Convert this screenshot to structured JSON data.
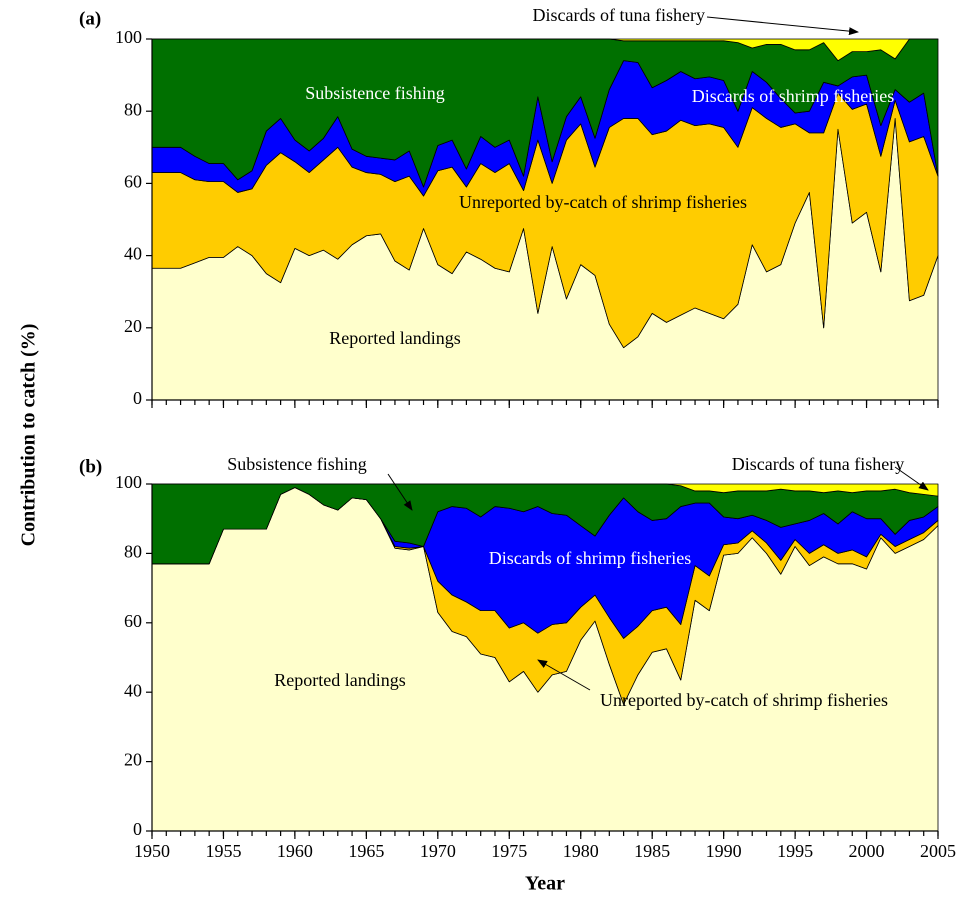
{
  "y_label": "Contribution to catch (%)",
  "chart_data": [
    {
      "type": "stacked_area",
      "panel": "(a)",
      "x": [
        1950,
        1951,
        1952,
        1953,
        1954,
        1955,
        1956,
        1957,
        1958,
        1959,
        1960,
        1961,
        1962,
        1963,
        1964,
        1965,
        1966,
        1967,
        1968,
        1969,
        1970,
        1971,
        1972,
        1973,
        1974,
        1975,
        1976,
        1977,
        1978,
        1979,
        1980,
        1981,
        1982,
        1983,
        1984,
        1985,
        1986,
        1987,
        1988,
        1989,
        1990,
        1991,
        1992,
        1993,
        1994,
        1995,
        1996,
        1997,
        1998,
        1999,
        2000,
        2001,
        2002,
        2003,
        2004,
        2005
      ],
      "xlim": [
        1950,
        2005
      ],
      "xticks": [
        1950,
        1955,
        1960,
        1965,
        1970,
        1975,
        1980,
        1985,
        1990,
        1995,
        2000,
        2005
      ],
      "ylim": [
        0,
        100
      ],
      "yticks": [
        0,
        20,
        40,
        60,
        80,
        100
      ],
      "series": [
        {
          "name": "Reported landings",
          "color": "#ffffcc",
          "values": [
            36.5,
            36.5,
            36.5,
            38,
            39.5,
            39.5,
            42.5,
            40,
            35,
            32.5,
            42,
            40,
            41.5,
            39,
            43,
            45.5,
            46,
            38.5,
            36,
            47.5,
            37.5,
            35,
            41,
            39,
            36.5,
            35.5,
            47.5,
            24,
            42.5,
            28,
            37.5,
            34.5,
            21,
            14.5,
            17.5,
            24,
            21.5,
            23.5,
            25.5,
            24,
            22.5,
            26.5,
            43,
            35.5,
            37.5,
            49,
            57.5,
            20,
            75,
            49,
            52,
            35.5,
            78,
            27.5,
            29,
            40
          ]
        },
        {
          "name": "Unreported by-catch of shrimp fisheries",
          "color": "#ffcc00",
          "values": [
            26.5,
            26.5,
            26.5,
            23,
            21,
            21,
            15,
            18.5,
            30,
            36,
            24,
            23,
            25,
            31,
            21.5,
            17.5,
            16.5,
            22,
            26,
            9,
            26,
            29.5,
            18,
            26.5,
            26.5,
            30,
            10.5,
            48,
            17.5,
            44,
            39,
            30,
            54.5,
            63.5,
            60.5,
            49.5,
            53,
            54,
            50.5,
            52.5,
            53,
            43.5,
            38,
            42.5,
            38,
            27.5,
            16.5,
            54,
            10,
            31.5,
            30,
            32,
            5,
            44,
            44,
            22
          ]
        },
        {
          "name": "Discards of shrimp fisheries",
          "color": "#0000ff",
          "values": [
            7,
            7,
            7,
            6.5,
            5,
            5,
            3.5,
            5,
            9.5,
            9.5,
            6,
            6,
            6,
            8.5,
            5,
            4.5,
            4.5,
            6,
            7,
            2.5,
            7,
            7.5,
            5,
            7.5,
            7,
            6.5,
            4,
            12,
            6,
            6.5,
            7.5,
            8,
            10.5,
            16,
            15.5,
            13,
            14,
            13.5,
            13,
            13,
            13,
            10,
            10,
            10,
            8,
            3,
            6,
            14,
            2,
            9,
            8,
            8.5,
            3,
            11,
            12,
            0
          ]
        },
        {
          "name": "Subsistence fishing",
          "color": "#007000",
          "values": [
            30,
            30,
            30,
            32.5,
            34.5,
            34.5,
            39,
            36.5,
            25.5,
            22,
            28,
            31,
            27.5,
            21.5,
            30.5,
            32.5,
            33,
            33.5,
            31,
            41,
            29.5,
            28,
            36,
            27,
            30,
            28,
            38,
            16,
            34,
            21.5,
            16,
            27.5,
            14,
            5.5,
            6,
            13,
            11,
            8.5,
            10.5,
            10,
            11,
            19,
            6.5,
            10.5,
            15,
            17.5,
            17,
            11,
            7,
            7,
            6.5,
            21,
            8.5,
            17.5,
            15,
            38
          ]
        },
        {
          "name": "Discards of tuna fishery",
          "color": "#ffff00",
          "values": [
            0,
            0,
            0,
            0,
            0,
            0,
            0,
            0,
            0,
            0,
            0,
            0,
            0,
            0,
            0,
            0,
            0,
            0,
            0,
            0,
            0,
            0,
            0,
            0,
            0,
            0,
            0,
            0,
            0,
            0,
            0,
            0,
            0,
            0.5,
            0.5,
            0.5,
            0.5,
            0.5,
            0.5,
            0.5,
            0.5,
            1,
            2.5,
            1.5,
            1.5,
            3,
            3,
            1,
            6,
            3.5,
            3.5,
            3,
            5.5,
            0,
            0,
            0
          ]
        }
      ]
    },
    {
      "type": "stacked_area",
      "panel": "(b)",
      "xlabel": "Year",
      "x": [
        1950,
        1951,
        1952,
        1953,
        1954,
        1955,
        1956,
        1957,
        1958,
        1959,
        1960,
        1961,
        1962,
        1963,
        1964,
        1965,
        1966,
        1967,
        1968,
        1969,
        1970,
        1971,
        1972,
        1973,
        1974,
        1975,
        1976,
        1977,
        1978,
        1979,
        1980,
        1981,
        1982,
        1983,
        1984,
        1985,
        1986,
        1987,
        1988,
        1989,
        1990,
        1991,
        1992,
        1993,
        1994,
        1995,
        1996,
        1997,
        1998,
        1999,
        2000,
        2001,
        2002,
        2003,
        2004,
        2005
      ],
      "xlim": [
        1950,
        2005
      ],
      "xticks": [
        1950,
        1955,
        1960,
        1965,
        1970,
        1975,
        1980,
        1985,
        1990,
        1995,
        2000,
        2005
      ],
      "ylim": [
        0,
        100
      ],
      "yticks": [
        0,
        20,
        40,
        60,
        80,
        100
      ],
      "series": [
        {
          "name": "Reported landings",
          "color": "#ffffcc",
          "values": [
            77,
            77,
            77,
            77,
            77,
            87,
            87,
            87,
            87,
            97,
            99,
            97,
            94,
            92.5,
            96,
            95.5,
            90,
            81.5,
            81,
            82,
            63,
            57.5,
            56,
            51,
            50,
            43,
            46,
            40,
            45,
            46,
            55,
            60.5,
            48,
            36.5,
            45,
            51.5,
            52.5,
            43.5,
            66.5,
            63.5,
            79.5,
            80,
            84.5,
            80,
            74,
            82,
            76.5,
            79,
            77,
            77,
            75.5,
            84.5,
            80,
            82,
            84,
            88
          ]
        },
        {
          "name": "Unreported by-catch of shrimp fisheries",
          "color": "#ffcc00",
          "values": [
            0,
            0,
            0,
            0,
            0,
            0,
            0,
            0,
            0,
            0,
            0,
            0,
            0,
            0,
            0,
            0,
            0,
            0.5,
            0.5,
            0,
            9,
            10.5,
            10,
            12.5,
            13.5,
            15.5,
            14,
            17,
            14.5,
            14,
            9.5,
            7.5,
            13.5,
            19,
            14,
            12,
            12,
            16,
            10,
            10,
            3,
            3,
            2,
            3,
            4,
            2,
            3.5,
            3.5,
            3,
            4,
            3.5,
            1,
            2,
            2,
            2,
            1.5
          ]
        },
        {
          "name": "Discards of shrimp fisheries",
          "color": "#0000ff",
          "values": [
            0,
            0,
            0,
            0,
            0,
            0,
            0,
            0,
            0,
            0,
            0,
            0,
            0,
            0,
            0,
            0,
            0,
            1.5,
            1.5,
            0,
            20,
            25.5,
            27,
            27,
            30,
            34.5,
            32,
            36.5,
            32,
            31,
            23.5,
            17,
            29.5,
            40.5,
            33,
            26,
            25.5,
            34,
            18,
            21,
            8,
            7,
            4.5,
            6.5,
            9.5,
            4.5,
            9.5,
            9,
            8.5,
            11,
            11,
            4.5,
            3.5,
            5.5,
            4.5,
            4
          ]
        },
        {
          "name": "Subsistence fishing",
          "color": "#007000",
          "values": [
            23,
            23,
            23,
            23,
            23,
            13,
            13,
            13,
            13,
            3,
            1,
            3,
            6,
            7.5,
            4,
            4.5,
            10,
            16.5,
            17,
            18,
            8,
            6.5,
            7,
            9.5,
            6.5,
            7,
            8,
            6.5,
            8.5,
            9,
            12,
            15,
            9,
            4,
            8,
            10.5,
            10,
            6,
            3.5,
            3.5,
            7,
            8,
            7,
            8.5,
            11,
            9.5,
            8.5,
            6,
            9.5,
            5.5,
            8,
            8,
            13,
            8,
            6.5,
            3
          ]
        },
        {
          "name": "Discards of tuna fishery",
          "color": "#ffff00",
          "values": [
            0,
            0,
            0,
            0,
            0,
            0,
            0,
            0,
            0,
            0,
            0,
            0,
            0,
            0,
            0,
            0,
            0,
            0,
            0,
            0,
            0,
            0,
            0,
            0,
            0,
            0,
            0,
            0,
            0,
            0,
            0,
            0,
            0,
            0,
            0,
            0,
            0,
            0.5,
            2,
            2,
            2.5,
            2,
            2,
            2,
            1.5,
            2,
            2,
            2.5,
            2,
            2.5,
            2,
            2,
            1.5,
            2.5,
            3,
            3.5
          ]
        }
      ]
    }
  ]
}
